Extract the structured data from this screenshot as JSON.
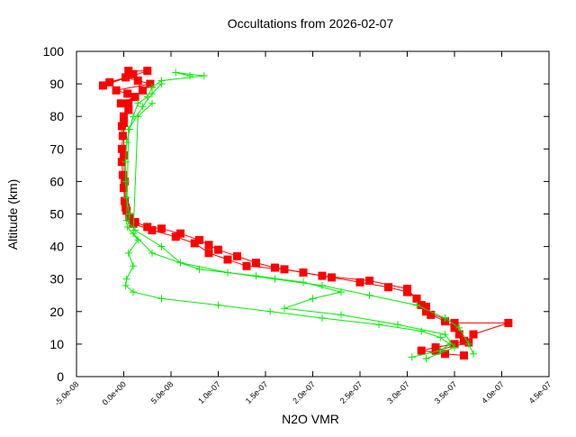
{
  "chart_data": {
    "type": "line",
    "title": "Occultations from 2026-02-07",
    "xlabel": "N2O VMR",
    "ylabel": "Altitude (km)",
    "xlim": [
      -5e-08,
      4.5e-07
    ],
    "ylim": [
      0,
      100
    ],
    "grid": false,
    "x_ticks": [
      "-5.0e-08",
      "0.0e+00",
      "5.0e-08",
      "1.0e-07",
      "1.5e-07",
      "2.0e-07",
      "2.5e-07",
      "3.0e-07",
      "3.5e-07",
      "4.0e-07",
      "4.5e-07"
    ],
    "x_tick_values": [
      -5e-08,
      0,
      5e-08,
      1e-07,
      1.5e-07,
      2e-07,
      2.5e-07,
      3e-07,
      3.5e-07,
      4e-07,
      4.5e-07
    ],
    "y_ticks": [
      "0",
      "10",
      "20",
      "30",
      "40",
      "50",
      "60",
      "70",
      "80",
      "90",
      "100"
    ],
    "y_tick_values": [
      0,
      10,
      20,
      30,
      40,
      50,
      60,
      70,
      80,
      90,
      100
    ],
    "series": [
      {
        "color": "#ff0000",
        "marker": "square",
        "points": [
          [
            5e-09,
            94
          ],
          [
            2.5e-08,
            94
          ],
          [
            -2.2e-08,
            89.5
          ],
          [
            -1.5e-08,
            90.5
          ],
          [
            2e-09,
            92
          ],
          [
            1.5e-08,
            91
          ],
          [
            2.8e-08,
            90
          ],
          [
            -8e-09,
            88
          ],
          [
            4e-09,
            87
          ],
          [
            1.2e-08,
            86
          ],
          [
            -3e-09,
            84
          ],
          [
            5e-09,
            82
          ],
          [
            0.0,
            80
          ],
          [
            -2e-09,
            77
          ],
          [
            -1e-09,
            74
          ],
          [
            -2e-09,
            70
          ],
          [
            -2e-09,
            66
          ],
          [
            -1e-09,
            62
          ],
          [
            0,
            58
          ],
          [
            1e-09,
            54
          ],
          [
            3e-09,
            51
          ],
          [
            6e-09,
            49
          ],
          [
            1.2e-08,
            47.5
          ],
          [
            2.5e-08,
            46
          ],
          [
            4e-08,
            45.5
          ],
          [
            6e-08,
            44
          ],
          [
            8e-08,
            42
          ],
          [
            9e-08,
            40.5
          ],
          [
            1e-07,
            39
          ],
          [
            1.2e-07,
            37
          ],
          [
            1.4e-07,
            35
          ],
          [
            1.6e-07,
            33.5
          ],
          [
            1.9e-07,
            32
          ],
          [
            2.2e-07,
            30.5
          ],
          [
            2.5e-07,
            29
          ],
          [
            2.8e-07,
            27.5
          ],
          [
            3e-07,
            26
          ],
          [
            3.1e-07,
            24
          ],
          [
            3.2e-07,
            21.5
          ],
          [
            3.25e-07,
            19
          ],
          [
            3.4e-07,
            17
          ],
          [
            3.5e-07,
            15
          ],
          [
            3.55e-07,
            13
          ],
          [
            3.6e-07,
            11
          ],
          [
            3.5e-07,
            10
          ],
          [
            3.3e-07,
            9
          ],
          [
            3.15e-07,
            8
          ],
          [
            3.4e-07,
            7
          ],
          [
            3.6e-07,
            6.5
          ]
        ]
      },
      {
        "color": "#ff0000",
        "marker": "square",
        "points": [
          [
            1e-08,
            93
          ],
          [
            2e-08,
            88
          ],
          [
            5e-09,
            84
          ],
          [
            0,
            78
          ],
          [
            0,
            68
          ],
          [
            1e-09,
            60
          ],
          [
            2e-09,
            52
          ],
          [
            1e-08,
            47
          ],
          [
            3e-08,
            45
          ],
          [
            5.5e-08,
            43
          ],
          [
            7.5e-08,
            41
          ],
          [
            9e-08,
            38
          ],
          [
            1.1e-07,
            36
          ],
          [
            1.3e-07,
            34
          ],
          [
            1.7e-07,
            33
          ],
          [
            2.1e-07,
            31
          ],
          [
            2.6e-07,
            29.5
          ],
          [
            3e-07,
            27
          ],
          [
            3.15e-07,
            22
          ],
          [
            3.2e-07,
            20
          ],
          [
            3.5e-07,
            16.5
          ],
          [
            4.07e-07,
            16.5
          ],
          [
            3.7e-07,
            13
          ],
          [
            3.65e-07,
            10.5
          ],
          [
            3.3e-07,
            8
          ]
        ]
      },
      {
        "color": "#00ee00",
        "marker": "plus",
        "points": [
          [
            7e-08,
            92.5
          ],
          [
            5.5e-08,
            93.5
          ],
          [
            8.5e-08,
            92.5
          ],
          [
            4e-08,
            91
          ],
          [
            3e-08,
            89
          ],
          [
            2.5e-08,
            86
          ],
          [
            1.5e-08,
            84
          ],
          [
            1e-08,
            80
          ],
          [
            6e-09,
            76
          ],
          [
            3e-09,
            72
          ],
          [
            2e-09,
            66
          ],
          [
            2e-09,
            60
          ],
          [
            3e-09,
            55
          ],
          [
            6e-09,
            50
          ],
          [
            4e-09,
            46
          ],
          [
            1.5e-08,
            42
          ],
          [
            5e-09,
            38
          ],
          [
            1e-08,
            34
          ],
          [
            3e-09,
            30
          ],
          [
            2e-09,
            28
          ],
          [
            1e-08,
            26
          ],
          [
            4e-08,
            24
          ],
          [
            1e-07,
            22
          ],
          [
            1.55e-07,
            20
          ],
          [
            2.1e-07,
            18
          ],
          [
            2.7e-07,
            16
          ],
          [
            3.15e-07,
            14
          ],
          [
            3.35e-07,
            12
          ],
          [
            3.45e-07,
            10
          ],
          [
            3.35e-07,
            8
          ],
          [
            3.05e-07,
            6
          ]
        ]
      },
      {
        "color": "#00ee00",
        "marker": "plus",
        "points": [
          [
            4e-08,
            90
          ],
          [
            3e-08,
            87
          ],
          [
            2e-08,
            83
          ],
          [
            5e-09,
            76
          ],
          [
            3e-09,
            48
          ],
          [
            1.2e-08,
            45
          ],
          [
            4e-08,
            40
          ],
          [
            6e-08,
            35
          ],
          [
            1.1e-07,
            32
          ],
          [
            1.6e-07,
            30
          ],
          [
            2.1e-07,
            28
          ],
          [
            2.6e-07,
            25
          ],
          [
            3.1e-07,
            22
          ],
          [
            3.4e-07,
            18
          ],
          [
            3.55e-07,
            15
          ],
          [
            3.65e-07,
            10
          ],
          [
            3.7e-07,
            7
          ]
        ]
      },
      {
        "color": "#00ee00",
        "marker": "plus",
        "points": [
          [
            3e-08,
            84
          ],
          [
            1.5e-08,
            80
          ],
          [
            1e-08,
            44
          ],
          [
            3e-08,
            38
          ],
          [
            8e-08,
            33
          ],
          [
            1.4e-07,
            31
          ],
          [
            1.9e-07,
            29
          ],
          [
            2.3e-07,
            26
          ],
          [
            2e-07,
            24
          ],
          [
            1.7e-07,
            21
          ],
          [
            2.3e-07,
            19
          ],
          [
            2.9e-07,
            16
          ],
          [
            3.4e-07,
            13
          ],
          [
            3.5e-07,
            9
          ],
          [
            3.2e-07,
            5.5
          ]
        ]
      }
    ]
  }
}
